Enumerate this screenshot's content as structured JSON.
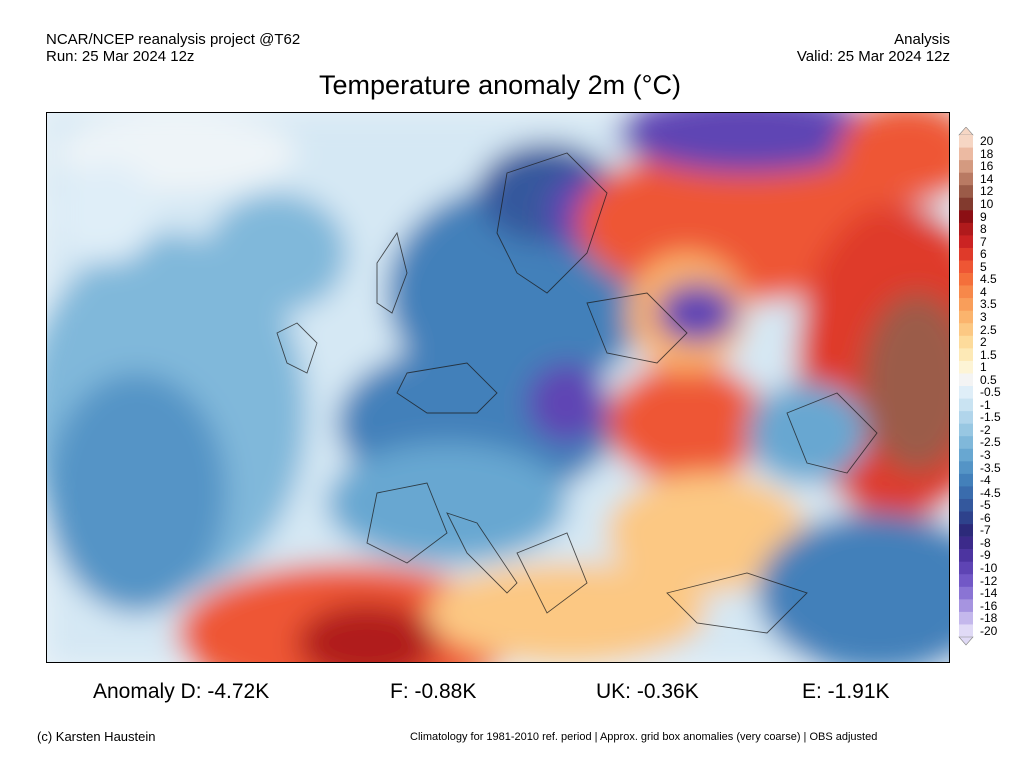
{
  "header": {
    "source": "NCAR/NCEP reanalysis project @T62",
    "run": "Run: 25 Mar 2024 12z",
    "mode": "Analysis",
    "valid": "Valid: 25 Mar 2024 12z",
    "title": "Temperature anomaly 2m (°C)"
  },
  "colorbar": {
    "labels": [
      "20",
      "18",
      "16",
      "14",
      "12",
      "10",
      "9",
      "8",
      "7",
      "6",
      "5",
      "4.5",
      "4",
      "3.5",
      "3",
      "2.5",
      "2",
      "1.5",
      "1",
      "0.5",
      "-0.5",
      "-1",
      "-1.5",
      "-2",
      "-2.5",
      "-3",
      "-3.5",
      "-4",
      "-4.5",
      "-5",
      "-6",
      "-7",
      "-8",
      "-9",
      "-10",
      "-12",
      "-14",
      "-16",
      "-18",
      "-20"
    ],
    "colors": [
      "#f6d6c4",
      "#ecbaa2",
      "#d49a80",
      "#b97a63",
      "#9b5b48",
      "#823a2e",
      "#8c0f14",
      "#b01a1c",
      "#cb2323",
      "#df3a2a",
      "#ee5634",
      "#f46f3b",
      "#f7884a",
      "#f99e5a",
      "#fbb46d",
      "#fcc883",
      "#fddb9b",
      "#fde9b6",
      "#fdf4d6",
      "#f4f4f4",
      "#dfeef8",
      "#c9e3f2",
      "#b1d5eb",
      "#98c7e2",
      "#80b8da",
      "#68a7d1",
      "#5494c6",
      "#4380ba",
      "#3a6cad",
      "#34589d",
      "#2e428c",
      "#2c2a7a",
      "#3c2a8a",
      "#4c34a0",
      "#5e44b4",
      "#7258c6",
      "#8a74d4",
      "#a694e0",
      "#c4b8ec",
      "#e0daf6"
    ]
  },
  "anomalies": [
    {
      "label": "Anomaly D: -4.72K"
    },
    {
      "label": "F: -0.88K"
    },
    {
      "label": "UK: -0.36K"
    },
    {
      "label": "E: -1.91K"
    }
  ],
  "footer": {
    "credit": "(c) Karsten Haustein",
    "note": "Climatology for 1981-2010 ref. period | Approx. grid box anomalies (very coarse) | OBS adjusted"
  }
}
